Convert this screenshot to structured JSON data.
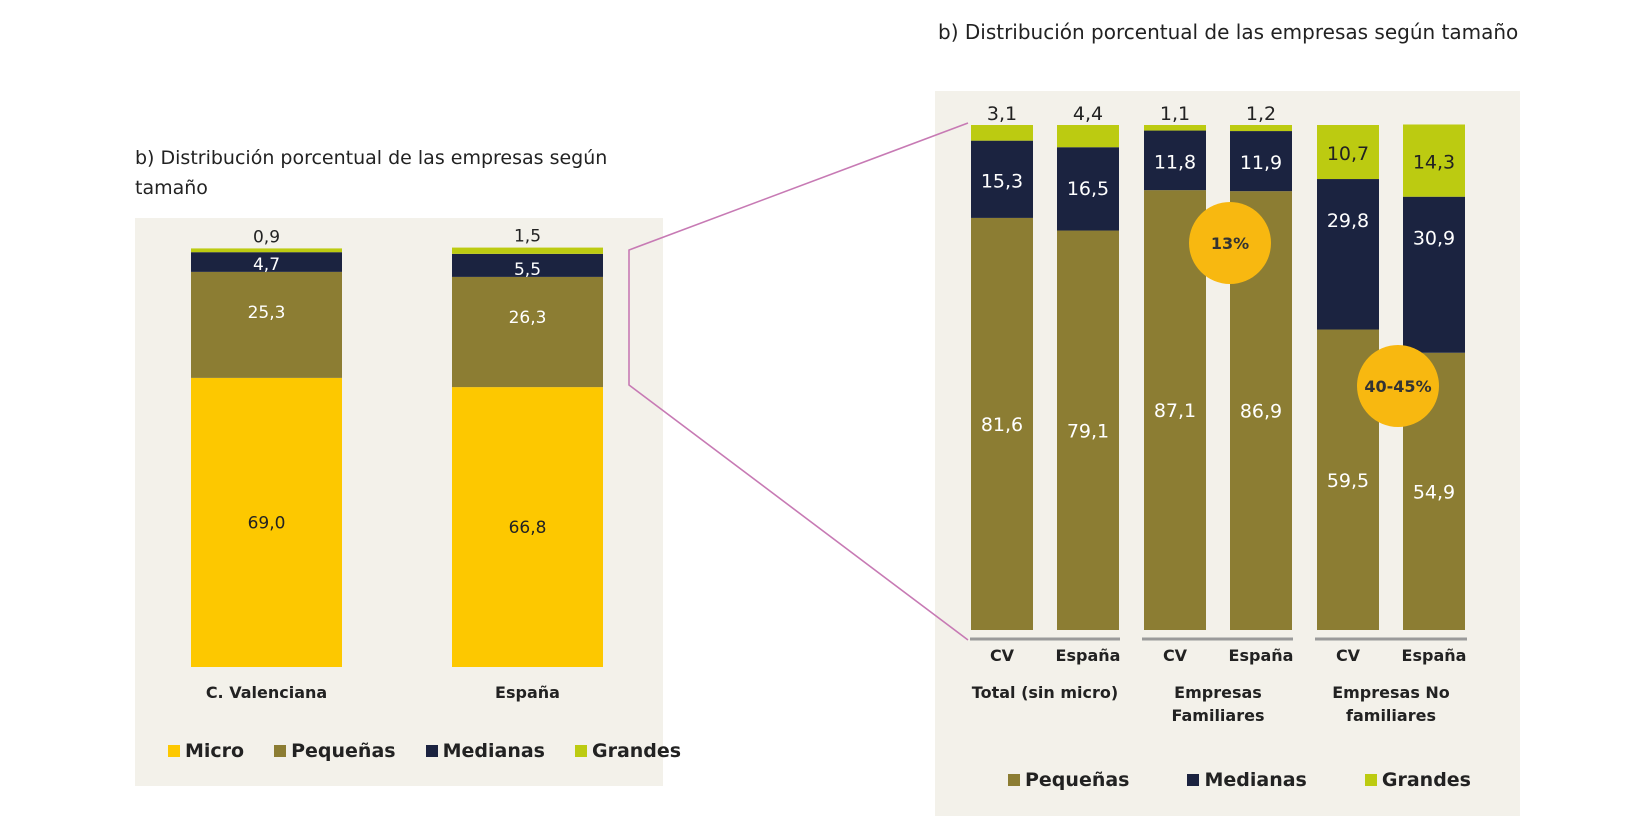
{
  "titles": {
    "left": "b)  Distribución porcentual de las empresas según tamaño",
    "right": "b) Distribución porcentual de las empresas según tamaño"
  },
  "colors": {
    "Micro": "#fdc800",
    "Pequeñas": "#8c7d33",
    "Medianas": "#1b2340",
    "Grandes": "#bccb11",
    "bubble": "#f8b810",
    "connector": "#c77ab4"
  },
  "chart_data": [
    {
      "type": "bar",
      "stacked": true,
      "title": "b)  Distribución porcentual de las empresas según tamaño",
      "categories": [
        "C. Valenciana",
        "España"
      ],
      "series": [
        {
          "name": "Micro",
          "values": [
            69.0,
            66.8
          ],
          "labels": [
            "69,0",
            "66,8"
          ]
        },
        {
          "name": "Pequeñas",
          "values": [
            25.3,
            26.3
          ],
          "labels": [
            "25,3",
            "26,3"
          ]
        },
        {
          "name": "Medianas",
          "values": [
            4.7,
            5.5
          ],
          "labels": [
            "4,7",
            "5,5"
          ]
        },
        {
          "name": "Grandes",
          "values": [
            0.9,
            1.5
          ],
          "labels": [
            "0,9",
            "1,5"
          ]
        }
      ],
      "ylim": [
        0,
        100
      ],
      "legend": [
        "Micro",
        "Pequeñas",
        "Medianas",
        "Grandes"
      ],
      "legend_position": "bottom"
    },
    {
      "type": "bar",
      "stacked": true,
      "title": "b) Distribución porcentual de las empresas según tamaño",
      "categories": [
        "CV",
        "España",
        "CV",
        "España",
        "CV",
        "España"
      ],
      "groups": [
        "Total (sin micro)",
        "Empresas Familiares",
        "Empresas No familiares"
      ],
      "series": [
        {
          "name": "Pequeñas",
          "values": [
            81.6,
            79.1,
            87.1,
            86.9,
            59.5,
            54.9
          ],
          "labels": [
            "81,6",
            "79,1",
            "87,1",
            "86,9",
            "59,5",
            "54,9"
          ]
        },
        {
          "name": "Medianas",
          "values": [
            15.3,
            16.5,
            11.8,
            11.9,
            29.8,
            30.9
          ],
          "labels": [
            "15,3",
            "16,5",
            "11,8",
            "11,9",
            "29,8",
            "30,9"
          ]
        },
        {
          "name": "Grandes",
          "values": [
            3.1,
            4.4,
            1.1,
            1.2,
            10.7,
            14.3
          ],
          "labels": [
            "3,1",
            "4,4",
            "1,1",
            "1,2",
            "10,7",
            "14,3"
          ]
        }
      ],
      "ylim": [
        0,
        100
      ],
      "annotations": [
        "13%",
        "40-45%"
      ],
      "legend": [
        "Pequeñas",
        "Medianas",
        "Grandes"
      ],
      "legend_position": "bottom"
    }
  ]
}
